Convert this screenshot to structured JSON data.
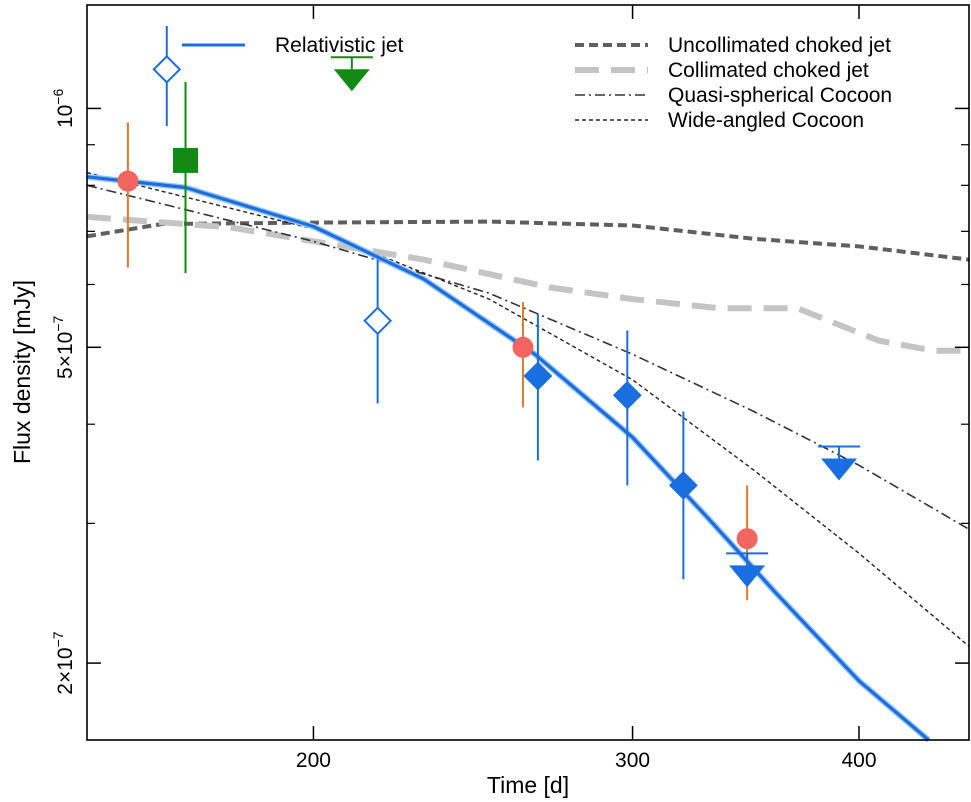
{
  "chart_data": {
    "type": "scatter",
    "xlabel": "Time [d]",
    "ylabel": "Flux density [mJy]",
    "x_scale": "log",
    "y_scale": "log",
    "xlim": [
      150,
      460
    ],
    "ylim": [
      1.6e-07,
      1.35e-06
    ],
    "x_ticks": [
      {
        "value": 200,
        "label": "200"
      },
      {
        "value": 300,
        "label": "300"
      },
      {
        "value": 400,
        "label": "400"
      }
    ],
    "y_ticks": [
      {
        "value": 1e-06,
        "base": "10",
        "exp": "−6"
      },
      {
        "value": 5e-07,
        "base": "5×10",
        "exp": "−7"
      },
      {
        "value": 2e-07,
        "base": "2×10",
        "exp": "−7"
      }
    ],
    "y_minor_ticks": [
      3e-07,
      4e-07,
      6e-07,
      7e-07,
      8e-07,
      9e-07
    ],
    "legend_left": [
      {
        "label": "Relativistic jet",
        "color": "#1a6fe0",
        "style": "solid"
      }
    ],
    "legend_right": [
      {
        "label": "Uncollimated choked jet",
        "color": "#5f5f5f",
        "style": "dashed-thick"
      },
      {
        "label": "Collimated choked jet",
        "color": "#c4c4c4",
        "style": "longdash"
      },
      {
        "label": "Quasi-spherical Cocoon",
        "color": "#333333",
        "style": "dashdot"
      },
      {
        "label": "Wide-angled Cocoon",
        "color": "#222222",
        "style": "dotted"
      }
    ],
    "series": [
      {
        "name": "Relativistic jet",
        "kind": "line",
        "color": "#1a6fe0",
        "points": [
          [
            150,
            8.2e-07
          ],
          [
            170,
            7.95e-07
          ],
          [
            200,
            7.1e-07
          ],
          [
            230,
            6.1e-07
          ],
          [
            265,
            4.9e-07
          ],
          [
            300,
            3.85e-07
          ],
          [
            330,
            3.05e-07
          ],
          [
            360,
            2.45e-07
          ],
          [
            400,
            1.9e-07
          ],
          [
            437,
            1.6e-07
          ]
        ]
      },
      {
        "name": "Uncollimated choked jet",
        "kind": "line",
        "color": "#5f5f5f",
        "points": [
          [
            150,
            6.9e-07
          ],
          [
            165,
            7.15e-07
          ],
          [
            200,
            7.18e-07
          ],
          [
            250,
            7.2e-07
          ],
          [
            300,
            7.12e-07
          ],
          [
            350,
            6.85e-07
          ],
          [
            400,
            6.7e-07
          ],
          [
            460,
            6.45e-07
          ]
        ]
      },
      {
        "name": "Collimated choked jet",
        "kind": "line",
        "color": "#c4c4c4",
        "points": [
          [
            150,
            7.3e-07
          ],
          [
            180,
            7.08e-07
          ],
          [
            230,
            6.45e-07
          ],
          [
            270,
            5.95e-07
          ],
          [
            300,
            5.75e-07
          ],
          [
            335,
            5.6e-07
          ],
          [
            370,
            5.6e-07
          ],
          [
            410,
            5.1e-07
          ],
          [
            440,
            4.95e-07
          ],
          [
            460,
            4.95e-07
          ]
        ]
      },
      {
        "name": "Quasi-spherical Cocoon",
        "kind": "line",
        "color": "#333333",
        "points": [
          [
            150,
            8e-07
          ],
          [
            200,
            6.8e-07
          ],
          [
            250,
            5.85e-07
          ],
          [
            300,
            4.9e-07
          ],
          [
            350,
            4.15e-07
          ],
          [
            400,
            3.55e-07
          ],
          [
            460,
            2.95e-07
          ]
        ]
      },
      {
        "name": "Wide-angled Cocoon",
        "kind": "line",
        "color": "#222222",
        "points": [
          [
            150,
            8.3e-07
          ],
          [
            200,
            7.05e-07
          ],
          [
            250,
            5.75e-07
          ],
          [
            300,
            4.55e-07
          ],
          [
            350,
            3.5e-07
          ],
          [
            400,
            2.75e-07
          ],
          [
            460,
            2.1e-07
          ]
        ]
      },
      {
        "kind": "marker",
        "marker": "circle",
        "color": "#f16660",
        "err_color": "#e07a2a",
        "points": [
          [
            158,
            8.1e-07,
            6.3e-07,
            9.6e-07
          ],
          [
            261,
            5e-07,
            4.2e-07,
            5.7e-07
          ],
          [
            347,
            2.87e-07,
            2.4e-07,
            3.35e-07
          ]
        ]
      },
      {
        "kind": "marker",
        "marker": "diamond-open",
        "color": "#1a6fe0",
        "err_color": "#1a6fe0",
        "points": [
          [
            166,
            1.12e-06,
            9.5e-07,
            1.27e-06
          ],
          [
            217,
            5.4e-07,
            4.25e-07,
            6.45e-07
          ]
        ]
      },
      {
        "kind": "marker",
        "marker": "diamond",
        "color": "#1a6fe0",
        "err_color": "#1a6fe0",
        "points": [
          [
            266,
            4.6e-07,
            3.6e-07,
            5.5e-07
          ],
          [
            298,
            4.35e-07,
            3.35e-07,
            5.25e-07
          ],
          [
            320,
            3.35e-07,
            2.55e-07,
            4.15e-07
          ]
        ]
      },
      {
        "kind": "marker",
        "marker": "square",
        "color": "#138a13",
        "err_color": "#138a13",
        "points": [
          [
            170,
            8.6e-07,
            6.2e-07,
            1.08e-06
          ]
        ]
      },
      {
        "kind": "upper_limit",
        "color": "#138a13",
        "points": [
          [
            210,
            1.16e-06
          ]
        ]
      },
      {
        "kind": "upper_limit",
        "color": "#1a6fe0",
        "points": [
          [
            390,
            3.75e-07
          ],
          [
            347,
            2.75e-07
          ]
        ]
      }
    ]
  }
}
